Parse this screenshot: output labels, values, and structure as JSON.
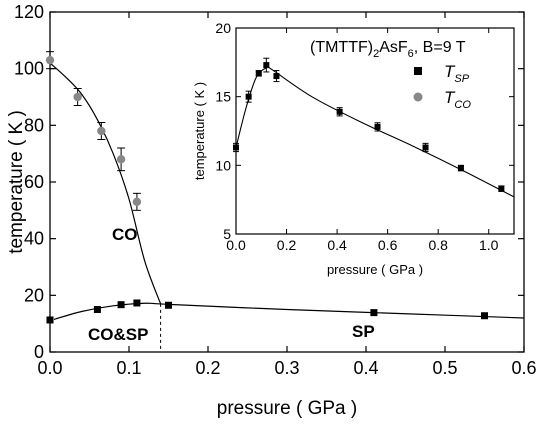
{
  "chart_data": [
    {
      "type": "scatter",
      "xlabel": "pressure ( GPa )",
      "ylabel": "temperature ( K )",
      "xlim": [
        0.0,
        0.6
      ],
      "ylim": [
        0,
        120
      ],
      "x_ticks": [
        "0.0",
        "0.1",
        "0.2",
        "0.3",
        "0.4",
        "0.5",
        "0.6"
      ],
      "y_ticks": [
        "0",
        "20",
        "40",
        "60",
        "80",
        "100",
        "120"
      ],
      "annotations": [
        "CO",
        "CO&SP",
        "SP"
      ],
      "phase_boundary_x": 0.14,
      "series": [
        {
          "name": "T_SP",
          "marker": "square",
          "color": "#000000",
          "x": [
            0.0,
            0.06,
            0.09,
            0.11,
            0.15,
            0.41,
            0.55
          ],
          "y": [
            11.3,
            15.0,
            16.7,
            17.3,
            16.5,
            13.9,
            12.8
          ]
        },
        {
          "name": "T_CO",
          "marker": "circle",
          "color": "#888888",
          "x": [
            0.0,
            0.035,
            0.065,
            0.09,
            0.11
          ],
          "y": [
            103,
            90,
            78,
            68,
            53
          ],
          "yerr": [
            3,
            3,
            3,
            4,
            3
          ]
        }
      ],
      "fit_curves": [
        {
          "x": [
            0.0,
            0.02,
            0.04,
            0.06,
            0.08,
            0.1,
            0.12,
            0.14
          ],
          "y": [
            102,
            97,
            91,
            82,
            70,
            54,
            32,
            17
          ]
        },
        {
          "x": [
            0.005,
            0.04,
            0.08,
            0.12,
            0.15,
            0.3,
            0.45,
            0.6
          ],
          "y": [
            11.5,
            14.3,
            16.3,
            17.2,
            16.8,
            15.0,
            13.5,
            12.0
          ]
        }
      ]
    },
    {
      "type": "scatter",
      "title_parts": {
        "main": "(TMTTF)",
        "sub": "2",
        "rest": "AsF",
        "sub2": "6",
        "tail": ", B=9 T"
      },
      "xlabel": "pressure ( GPa )",
      "ylabel": "temperature ( K )",
      "xlim": [
        0.0,
        1.1
      ],
      "ylim": [
        5,
        20
      ],
      "x_ticks": [
        "0.0",
        "0.2",
        "0.4",
        "0.6",
        "0.8",
        "1.0"
      ],
      "y_ticks": [
        "5",
        "10",
        "15",
        "20"
      ],
      "legend": [
        {
          "symbol": "T",
          "subscript": "SP",
          "marker": "square"
        },
        {
          "symbol": "T",
          "subscript": "CO",
          "marker": "circle"
        }
      ],
      "legend_position": "top-right",
      "series": [
        {
          "name": "T_SP",
          "marker": "square",
          "color": "#000000",
          "x": [
            0.0,
            0.05,
            0.09,
            0.12,
            0.16,
            0.41,
            0.56,
            0.75,
            0.89,
            1.05
          ],
          "y": [
            11.3,
            15.0,
            16.7,
            17.3,
            16.5,
            13.9,
            12.8,
            11.3,
            9.8,
            8.3
          ],
          "yerr": [
            0.3,
            0.4,
            0.2,
            0.5,
            0.4,
            0.3,
            0.3,
            0.3,
            0.2,
            0.2
          ]
        }
      ],
      "fit_curve": {
        "x": [
          0.0,
          0.04,
          0.08,
          0.12,
          0.14,
          0.3,
          0.5,
          0.7,
          0.9,
          1.1
        ],
        "y": [
          11.3,
          14.2,
          16.4,
          17.1,
          17.0,
          15.0,
          13.1,
          11.4,
          9.6,
          7.7
        ]
      }
    }
  ]
}
